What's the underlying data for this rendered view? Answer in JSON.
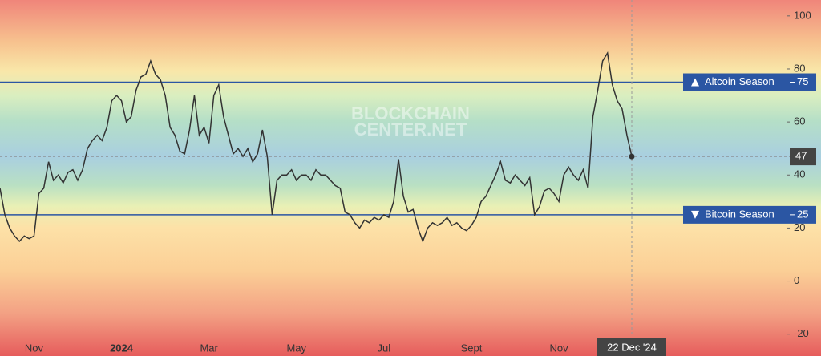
{
  "chart_data": {
    "type": "line",
    "watermark": [
      "BLOCKCHAIN",
      "CENTER.NET"
    ],
    "categories": [
      null,
      null,
      null,
      null,
      null,
      null,
      null,
      "Nov",
      null,
      null,
      null,
      null,
      null,
      null,
      null,
      null,
      null,
      null,
      null,
      null,
      null,
      null,
      null,
      null,
      null,
      "2024",
      null,
      null,
      null,
      null,
      null,
      null,
      null,
      null,
      null,
      null,
      null,
      null,
      null,
      null,
      null,
      null,
      null,
      "Mar",
      null,
      null,
      null,
      null,
      null,
      null,
      null,
      null,
      null,
      null,
      null,
      null,
      null,
      null,
      null,
      null,
      null,
      "May",
      null,
      null,
      null,
      null,
      null,
      null,
      null,
      null,
      null,
      null,
      null,
      null,
      null,
      null,
      null,
      null,
      null,
      "Jul",
      null,
      null,
      null,
      null,
      null,
      null,
      null,
      null,
      null,
      null,
      null,
      null,
      null,
      null,
      null,
      null,
      null,
      "Sept",
      null,
      null,
      null,
      null,
      null,
      null,
      null,
      null,
      null,
      null,
      null,
      null,
      null,
      null,
      null,
      null,
      null,
      "Nov",
      null,
      null,
      null,
      null,
      null,
      null,
      null,
      null,
      null,
      null,
      null,
      null,
      null,
      null,
      "22 Dec '24"
    ],
    "series": [
      {
        "color": "#333333",
        "values": [
          35,
          25,
          20,
          17,
          15,
          17,
          16,
          17,
          33,
          35,
          45,
          38,
          40,
          37,
          41,
          42,
          38,
          42,
          50,
          53,
          55,
          53,
          58,
          68,
          70,
          68,
          60,
          62,
          72,
          77,
          78,
          83,
          78,
          76,
          70,
          58,
          55,
          49,
          48,
          57,
          70,
          55,
          58,
          52,
          70,
          74,
          62,
          55,
          48,
          50,
          47,
          50,
          45,
          48,
          57,
          47,
          25,
          38,
          40,
          40,
          42,
          38,
          40,
          40,
          38,
          42,
          40,
          40,
          38,
          36,
          35,
          26,
          25,
          22,
          20,
          23,
          22,
          24,
          23,
          25,
          24,
          30,
          46,
          32,
          26,
          27,
          20,
          15,
          20,
          22,
          21,
          22,
          24,
          21,
          22,
          20,
          19,
          21,
          24,
          30,
          32,
          36,
          40,
          45,
          38,
          37,
          40,
          38,
          36,
          39,
          25,
          28,
          34,
          35,
          33,
          30,
          40,
          43,
          40,
          38,
          42,
          35,
          62,
          72,
          83,
          86,
          74,
          68,
          65,
          55,
          47
        ]
      }
    ],
    "annotations": [
      {
        "text": "Altcoin Season",
        "value": 75,
        "color": "#2b56a3"
      },
      {
        "text": "Bitcoin Season",
        "value": 25,
        "color": "#2b56a3"
      }
    ],
    "ylim": [
      -21,
      106
    ],
    "yticks": [
      100,
      80,
      60,
      40,
      20,
      0,
      -20
    ]
  }
}
